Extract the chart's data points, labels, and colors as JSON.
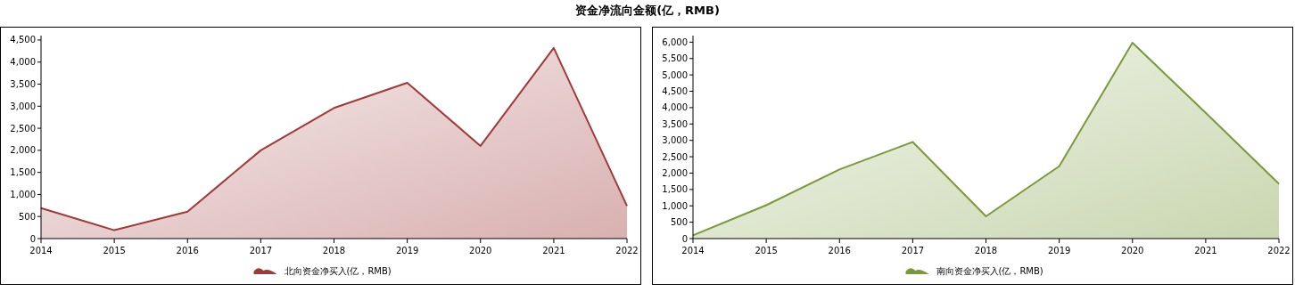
{
  "chart_data": [
    {
      "type": "area",
      "title": "资金净流向金额(亿，RMB)",
      "categories": [
        "2014",
        "2015",
        "2016",
        "2017",
        "2018",
        "2019",
        "2020",
        "2021",
        "2022"
      ],
      "series": [
        {
          "name": "北向资金净买入(亿，RMB)",
          "color": "#a03a3a",
          "values": [
            690,
            190,
            610,
            2000,
            2960,
            3530,
            2100,
            4320,
            740
          ]
        }
      ],
      "ylim": [
        0,
        4600
      ],
      "yticks": [
        0,
        {
          "value": 500,
          "label": "500"
        },
        {
          "value": 1000,
          "label": "1,000"
        },
        {
          "value": 1500,
          "label": "1,500"
        },
        {
          "value": 2000,
          "label": "2,000"
        },
        {
          "value": 2500,
          "label": "2,500"
        },
        {
          "value": 3000,
          "label": "3,000"
        },
        {
          "value": 3500,
          "label": "3,500"
        },
        {
          "value": 4000,
          "label": "4,000"
        },
        {
          "value": 4500,
          "label": "4,500"
        }
      ],
      "legend": "bottom",
      "grid": false
    },
    {
      "type": "area",
      "categories": [
        "2014",
        "2015",
        "2016",
        "2017",
        "2018",
        "2019",
        "2020",
        "2021",
        "2022"
      ],
      "series": [
        {
          "name": "南向资金净买入(亿，RMB)",
          "color": "#7a9a3a",
          "values": [
            100,
            1020,
            2110,
            2950,
            680,
            2210,
            5980,
            3840,
            1670
          ]
        }
      ],
      "ylim": [
        0,
        6200
      ],
      "yticks": [
        0,
        {
          "value": 500,
          "label": "500"
        },
        {
          "value": 1000,
          "label": "1,000"
        },
        {
          "value": 1500,
          "label": "1,500"
        },
        {
          "value": 2000,
          "label": "2,000"
        },
        {
          "value": 2500,
          "label": "2,500"
        },
        {
          "value": 3000,
          "label": "3,000"
        },
        {
          "value": 3500,
          "label": "3,500"
        },
        {
          "value": 4000,
          "label": "4,000"
        },
        {
          "value": 4500,
          "label": "4,500"
        },
        {
          "value": 5000,
          "label": "5,000"
        },
        {
          "value": 5500,
          "label": "5,500"
        },
        {
          "value": 6000,
          "label": "6,000"
        }
      ],
      "legend": "bottom",
      "grid": false
    }
  ]
}
